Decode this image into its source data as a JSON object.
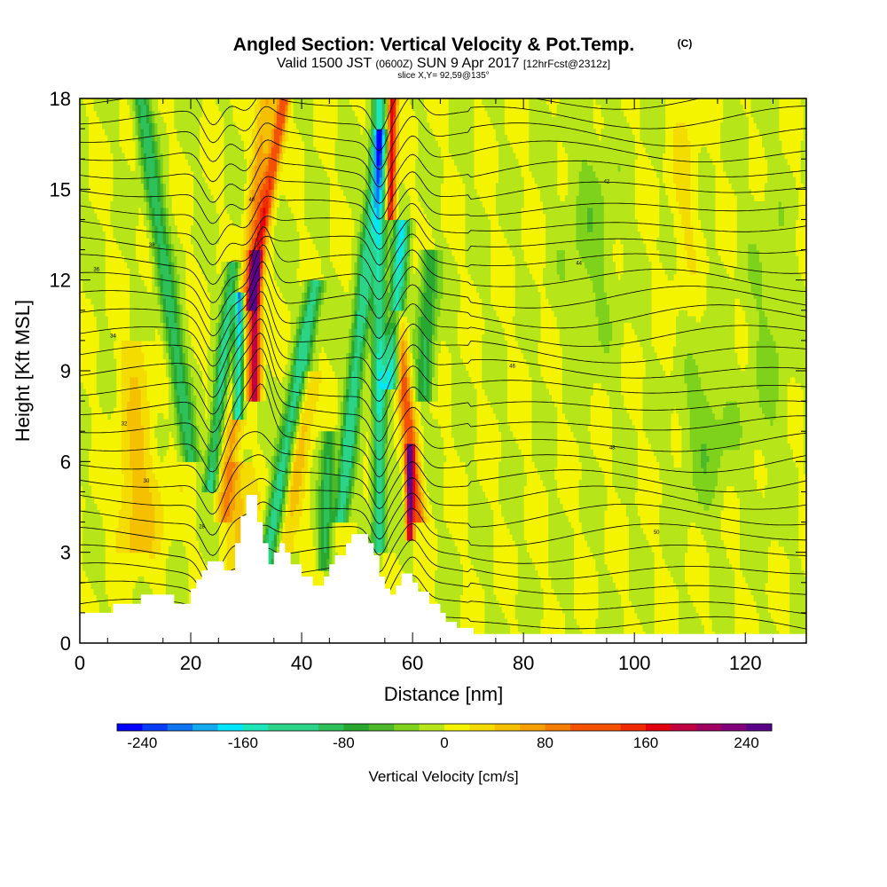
{
  "header": {
    "title": "Angled Section: Vertical Velocity & Pot.Temp.",
    "title_suffix": "(C)",
    "valid_a": "Valid 1500 JST",
    "valid_utc": "(0600Z)",
    "valid_b": "SUN 9 Apr 2017",
    "fcst": "[12hrFcst@2312z]",
    "slice": "slice X,Y= 92,59@135°"
  },
  "chart_data": {
    "type": "heatmap",
    "xlabel": "Distance [nm]",
    "ylabel": "Height [Kft MSL]",
    "xlim": [
      0,
      131
    ],
    "ylim": [
      0,
      18
    ],
    "x_ticks": [
      "0",
      "20",
      "40",
      "60",
      "80",
      "100",
      "120"
    ],
    "y_ticks": [
      "0",
      "3",
      "6",
      "9",
      "12",
      "15",
      "18"
    ],
    "colorbar": {
      "label": "Vertical Velocity [cm/s]",
      "tick_labels": [
        "-240",
        "-160",
        "-80",
        "0",
        "80",
        "160",
        "240"
      ],
      "range": [
        -260,
        260
      ],
      "colors": [
        "#0000ff",
        "#0a3cf5",
        "#0f74f0",
        "#14aaf0",
        "#00e6ff",
        "#1de6b8",
        "#2cd48a",
        "#2ec05a",
        "#28a830",
        "#4cb82a",
        "#7ed21c",
        "#b6e61a",
        "#f4f400",
        "#f4dc00",
        "#f5c000",
        "#f5a000",
        "#f57e00",
        "#f55200",
        "#ef2a00",
        "#e00010",
        "#c00040",
        "#a00060",
        "#80007a",
        "#5a0088"
      ],
      "edges": [
        -260,
        -240,
        -220,
        -200,
        -180,
        -160,
        -140,
        -120,
        -100,
        -80,
        -60,
        -40,
        -20,
        0,
        20,
        40,
        60,
        80,
        100,
        120,
        140,
        160,
        180,
        200,
        220,
        240,
        260
      ]
    },
    "terrain_kft": [
      [
        0,
        1.0
      ],
      [
        6,
        1.0
      ],
      [
        6,
        1.3
      ],
      [
        11,
        1.3
      ],
      [
        11,
        1.6
      ],
      [
        17,
        1.6
      ],
      [
        17,
        1.3
      ],
      [
        20,
        1.3
      ],
      [
        20,
        1.8
      ],
      [
        21,
        1.8
      ],
      [
        21,
        2.1
      ],
      [
        22,
        2.1
      ],
      [
        22,
        2.4
      ],
      [
        23,
        2.4
      ],
      [
        23,
        2.7
      ],
      [
        26,
        2.7
      ],
      [
        26,
        2.4
      ],
      [
        28,
        2.4
      ],
      [
        28,
        3.3
      ],
      [
        29,
        3.3
      ],
      [
        29,
        4.2
      ],
      [
        30,
        4.2
      ],
      [
        30,
        4.9
      ],
      [
        32,
        4.9
      ],
      [
        32,
        4.0
      ],
      [
        33,
        4.0
      ],
      [
        33,
        3.3
      ],
      [
        34,
        3.3
      ],
      [
        34,
        2.6
      ],
      [
        35,
        2.6
      ],
      [
        35,
        3.0
      ],
      [
        36,
        3.0
      ],
      [
        36,
        3.3
      ],
      [
        37,
        3.3
      ],
      [
        37,
        3.0
      ],
      [
        38,
        3.0
      ],
      [
        38,
        2.6
      ],
      [
        40,
        2.6
      ],
      [
        40,
        2.2
      ],
      [
        42,
        2.2
      ],
      [
        42,
        1.9
      ],
      [
        44,
        1.9
      ],
      [
        44,
        2.2
      ],
      [
        45,
        2.2
      ],
      [
        45,
        2.6
      ],
      [
        46,
        2.6
      ],
      [
        46,
        2.9
      ],
      [
        48,
        2.9
      ],
      [
        48,
        3.3
      ],
      [
        49,
        3.3
      ],
      [
        49,
        3.6
      ],
      [
        52,
        3.6
      ],
      [
        52,
        3.3
      ],
      [
        53,
        3.3
      ],
      [
        53,
        2.9
      ],
      [
        54,
        2.9
      ],
      [
        54,
        2.2
      ],
      [
        55,
        2.2
      ],
      [
        55,
        1.8
      ],
      [
        56,
        1.8
      ],
      [
        56,
        1.6
      ],
      [
        57,
        1.6
      ],
      [
        57,
        1.9
      ],
      [
        58,
        1.9
      ],
      [
        58,
        2.3
      ],
      [
        60,
        2.3
      ],
      [
        60,
        2.0
      ],
      [
        61,
        2.0
      ],
      [
        61,
        1.7
      ],
      [
        63,
        1.7
      ],
      [
        63,
        1.3
      ],
      [
        65,
        1.3
      ],
      [
        65,
        1.0
      ],
      [
        66,
        1.0
      ],
      [
        66,
        0.7
      ],
      [
        68,
        0.7
      ],
      [
        68,
        0.5
      ],
      [
        71,
        0.5
      ],
      [
        71,
        0.3
      ],
      [
        131,
        0.3
      ]
    ],
    "contour_labels": [
      "28",
      "30",
      "32",
      "34",
      "36",
      "38",
      "40",
      "42",
      "44",
      "46",
      "48",
      "50"
    ]
  }
}
